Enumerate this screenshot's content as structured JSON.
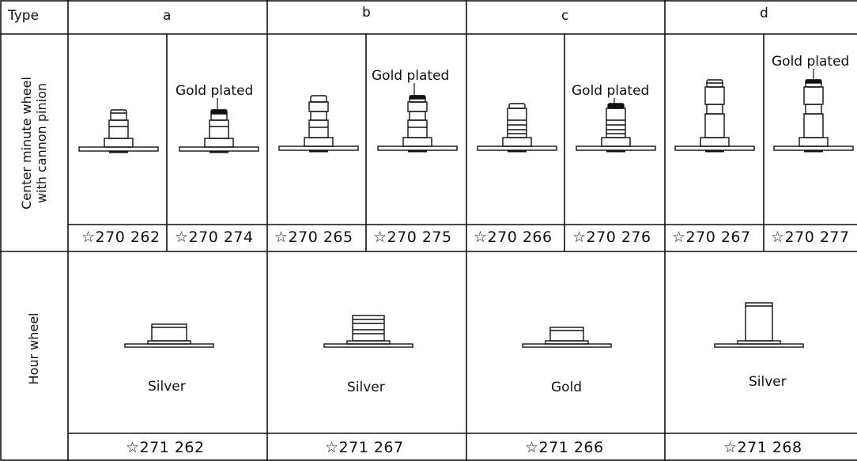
{
  "header": {
    "type_label": "Type",
    "types": [
      "a",
      "b",
      "c",
      "d"
    ]
  },
  "rows": {
    "center_label_line1": "Center minute wheel",
    "center_label_line2": "with cannon pinion",
    "hour_label": "Hour wheel"
  },
  "center_wheels": [
    {
      "part_no": "☆270 262",
      "finish": ""
    },
    {
      "part_no": "☆270 274",
      "finish": "Gold plated"
    },
    {
      "part_no": "☆270 265",
      "finish": ""
    },
    {
      "part_no": "☆270 275",
      "finish": "Gold plated"
    },
    {
      "part_no": "☆270 266",
      "finish": ""
    },
    {
      "part_no": "☆270 276",
      "finish": "Gold plated"
    },
    {
      "part_no": "☆270 267",
      "finish": ""
    },
    {
      "part_no": "☆270 277",
      "finish": "Gold plated"
    }
  ],
  "hour_wheels": [
    {
      "part_no": "☆271 262",
      "color": "Silver"
    },
    {
      "part_no": "☆271 267",
      "color": "Silver"
    },
    {
      "part_no": "☆271 266",
      "color": "Gold"
    },
    {
      "part_no": "☆271 268",
      "color": "Silver"
    }
  ]
}
